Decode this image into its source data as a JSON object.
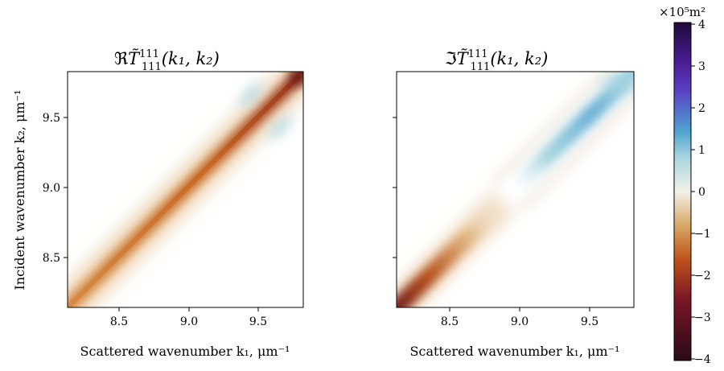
{
  "chart_data": [
    {
      "type": "heatmap",
      "title_prefix": "ℜ",
      "title_expr": "T̃",
      "title_sup": "111",
      "title_sub": "111",
      "title_args": "(k₁, k₂)",
      "xlabel": "Scattered wavenumber k₁, μm⁻¹",
      "ylabel": "Incident wavenumber k₂, μm⁻¹",
      "xlim": [
        8.12,
        9.83
      ],
      "ylim": [
        8.12,
        9.83
      ],
      "xticks": [
        "8.5",
        "9.0",
        "9.5"
      ],
      "yticks": [
        "8.5",
        "9.0",
        "9.5"
      ],
      "description_values": {
        "diagonal_min": -2.0,
        "peak_at_top_right": -3.0,
        "off_diagonal_lobes": 0.6
      }
    },
    {
      "type": "heatmap",
      "title_prefix": "ℑ",
      "title_expr": "T̃",
      "title_sup": "111",
      "title_sub": "111",
      "title_args": "(k₁, k₂)",
      "xlabel": "Scattered wavenumber k₁, μm⁻¹",
      "xlim": [
        8.12,
        9.83
      ],
      "ylim": [
        8.12,
        9.83
      ],
      "xticks": [
        "8.5",
        "9.0",
        "9.5"
      ],
      "description_values": {
        "lower_left_min": -3.0,
        "upper_band_max": 1.3
      }
    }
  ],
  "colorbar": {
    "multiplier": "×10⁵m²",
    "ticks": [
      "4",
      "3",
      "2",
      "1",
      "0",
      "−1",
      "−2",
      "−3",
      "−4"
    ],
    "range": [
      -4,
      4
    ],
    "colors": {
      "neg4": "#2a0a18",
      "neg3": "#7a1526",
      "neg2": "#bf5318",
      "neg1": "#d9a866",
      "zero": "#f3f0ea",
      "pos1": "#a9d6df",
      "pos2": "#4ea2d0",
      "pos3": "#5a3fc4",
      "pos4": "#1e0a3a"
    }
  }
}
